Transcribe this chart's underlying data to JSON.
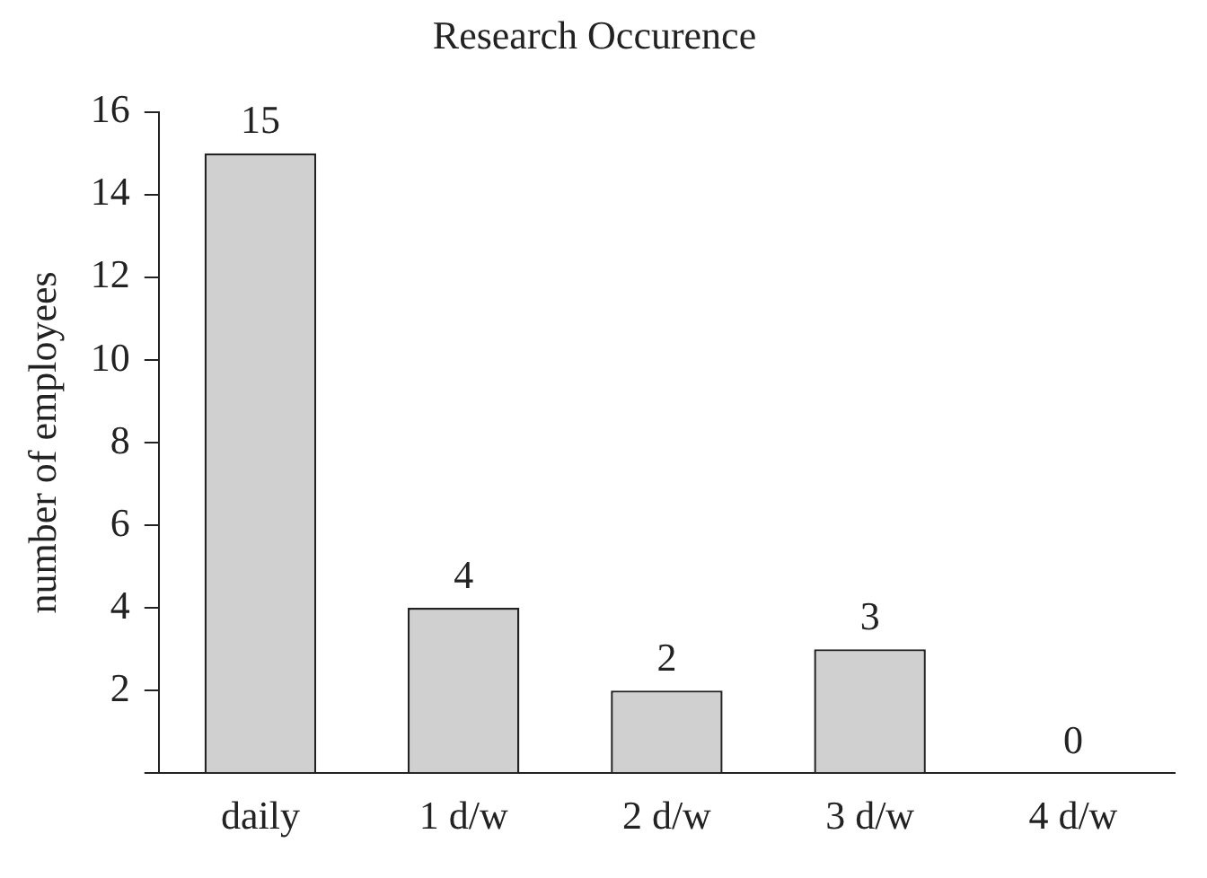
{
  "chart_data": {
    "type": "bar",
    "title": "Research Occurence",
    "ylabel": "number of employees",
    "categories": [
      "daily",
      "1 d/w",
      "2 d/w",
      "3 d/w",
      "4 d/w"
    ],
    "values": [
      15,
      4,
      2,
      3,
      0
    ],
    "color": "#d0d0d0",
    "ylim": [
      0,
      16
    ],
    "yticks": [
      {
        "value": 0,
        "label": null
      },
      2,
      4,
      6,
      8,
      10,
      12,
      14,
      16
    ],
    "grid": false,
    "legend": false,
    "data_labels": true
  }
}
